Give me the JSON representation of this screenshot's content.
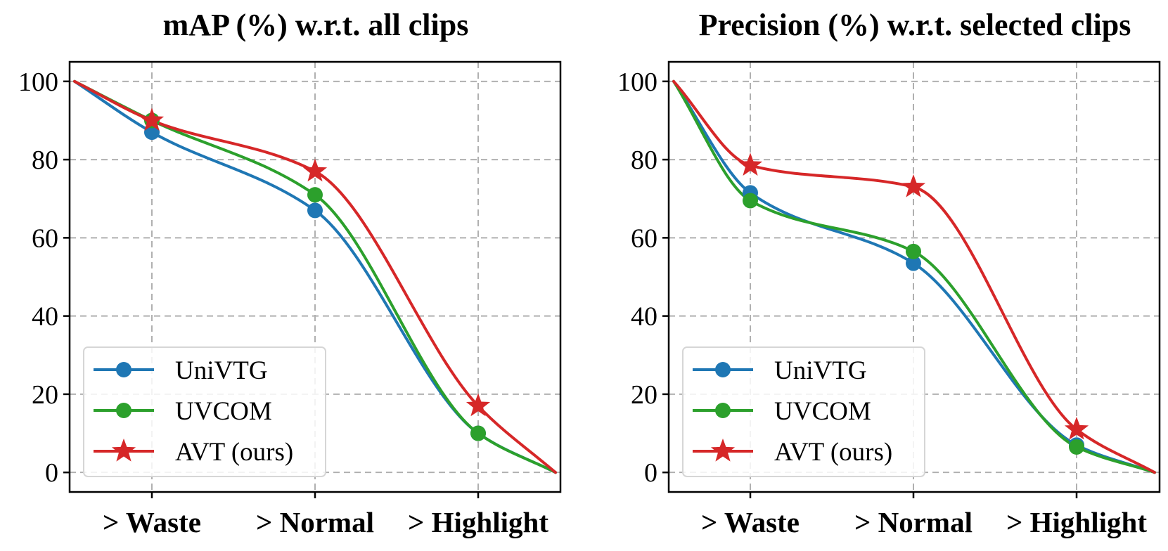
{
  "chart_data": [
    {
      "type": "line",
      "title": "mAP (%) w.r.t. all clips",
      "categories": [
        "> Waste",
        "> Normal",
        "> Highlight"
      ],
      "xlabel": "",
      "ylabel": "",
      "ylim": [
        -5,
        105
      ],
      "yticks": [
        "0",
        "20",
        "40",
        "60",
        "80",
        "100"
      ],
      "grid": true,
      "legend_position": "lower-left",
      "series": [
        {
          "name": "UniVTG",
          "color": "#1f77b4",
          "marker": "circle",
          "values": [
            87,
            67,
            10
          ],
          "start": 100,
          "end": 0
        },
        {
          "name": "UVCOM",
          "color": "#2ca02c",
          "marker": "circle",
          "values": [
            90,
            71,
            10
          ],
          "start": 100,
          "end": 0
        },
        {
          "name": "AVT (ours)",
          "color": "#d62728",
          "marker": "star",
          "values": [
            90,
            77,
            17
          ],
          "start": 100,
          "end": 0
        }
      ]
    },
    {
      "type": "line",
      "title": "Precision (%) w.r.t. selected clips",
      "categories": [
        "> Waste",
        "> Normal",
        "> Highlight"
      ],
      "xlabel": "",
      "ylabel": "",
      "ylim": [
        -5,
        105
      ],
      "yticks": [
        "0",
        "20",
        "40",
        "60",
        "80",
        "100"
      ],
      "grid": true,
      "legend_position": "lower-left",
      "series": [
        {
          "name": "UniVTG",
          "color": "#1f77b4",
          "marker": "circle",
          "values": [
            71.5,
            53.5,
            7
          ],
          "start": 100,
          "end": 0
        },
        {
          "name": "UVCOM",
          "color": "#2ca02c",
          "marker": "circle",
          "values": [
            69.5,
            56.5,
            6.5
          ],
          "start": 100,
          "end": 0
        },
        {
          "name": "AVT (ours)",
          "color": "#d62728",
          "marker": "star",
          "values": [
            78.5,
            73,
            11
          ],
          "start": 100,
          "end": 0
        }
      ]
    }
  ]
}
